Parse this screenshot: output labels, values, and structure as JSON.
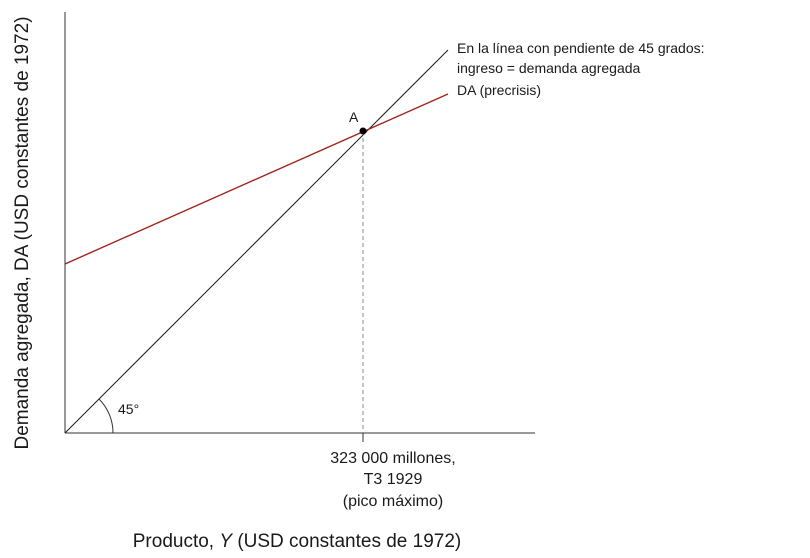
{
  "diagram": {
    "y_axis_label": "Demanda agregada, DA (USD constantes de 1972)",
    "x_axis_label_prefix": "Producto, ",
    "x_axis_label_symbol": "Y",
    "x_axis_label_suffix": " (USD constantes de 1972)",
    "line_45_label_line1": "En la línea con pendiente de 45 grados:",
    "line_45_label_line2": "ingreso = demanda agregada",
    "ad_line_label": "DA (precrisis)",
    "point_label": "A",
    "angle_label": "45°",
    "x_tick_line1": "323 000 millones,",
    "x_tick_line2": "T3 1929",
    "x_tick_line3": "(pico máximo)",
    "colors": {
      "axis": "#333333",
      "line_45": "#1a1a1a",
      "ad_line": "#a0241b",
      "point": "#000000",
      "dashed": "#888888"
    }
  }
}
